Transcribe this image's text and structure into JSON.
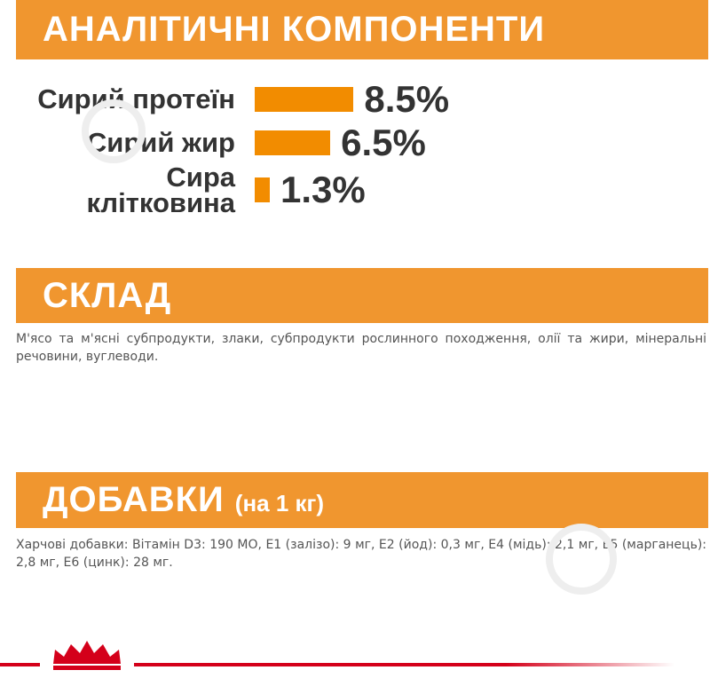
{
  "chart_data": {
    "type": "bar",
    "orientation": "horizontal",
    "title": "АНАЛІТИЧНІ КОМПОНЕНТИ",
    "categories": [
      "Сирий протеїн",
      "Сирий жир",
      "Сира\nклітковина"
    ],
    "values": [
      8.5,
      6.5,
      1.3
    ],
    "value_labels": [
      "8.5%",
      "6.5%",
      "1.3%"
    ],
    "color": "#f28c00"
  },
  "sections": {
    "composition": {
      "title": "СКЛАД",
      "text": "М'ясо та м'ясні субпродукти, злаки, субпродукти рослинного походження, олії та жири, мінеральні речовини, вуглеводи."
    },
    "additives": {
      "title": "ДОБАВКИ",
      "subtitle": "(на 1 кг)",
      "text": "Харчові добавки: Вітамін D3: 190 МО, E1 (залізо): 9 мг, E2 (йод): 0,3 мг, E4 (мідь): 2,1 мг, E5 (марганець): 2,8 мг, E6 (цинк): 28 мг."
    }
  }
}
